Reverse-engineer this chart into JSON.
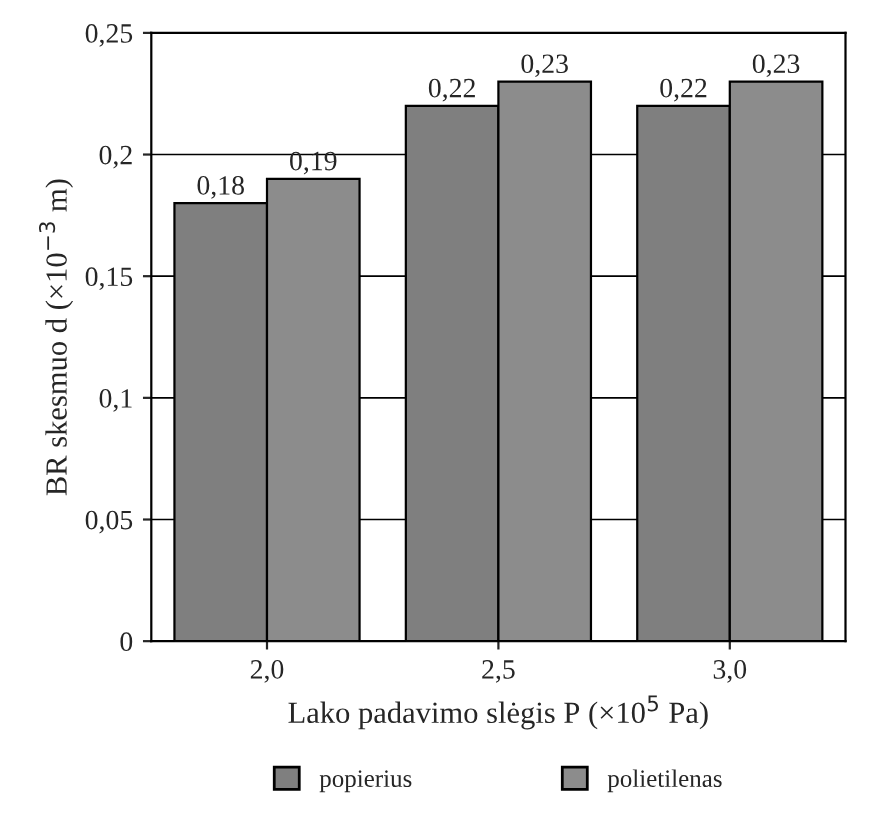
{
  "chart_data": {
    "type": "bar",
    "xlabel": "Lako padavimo slėgis P (×10$^{5}$ Pa)",
    "ylabel": "BR skesmuo d (×10$^{−3}$ m)",
    "categories": [
      "2,0",
      "2,5",
      "3,0"
    ],
    "series": [
      {
        "name": "popierius",
        "color": "#7f7f7f",
        "values": [
          0.18,
          0.22,
          0.22
        ],
        "value_labels": [
          "0,18",
          "0,22",
          "0,22"
        ]
      },
      {
        "name": "polietilenas",
        "color": "#8c8c8c",
        "values": [
          0.19,
          0.23,
          0.23
        ],
        "value_labels": [
          "0,19",
          "0,23",
          "0,23"
        ]
      }
    ],
    "ylim": [
      0,
      0.25
    ],
    "yticks": [
      {
        "value": 0,
        "label": "0"
      },
      {
        "value": 0.05,
        "label": "0,05"
      },
      {
        "value": 0.1,
        "label": "0,1"
      },
      {
        "value": 0.15,
        "label": "0,15"
      },
      {
        "value": 0.2,
        "label": "0,2"
      },
      {
        "value": 0.25,
        "label": "0,25"
      }
    ],
    "grid": "y",
    "legend": "bottom"
  }
}
